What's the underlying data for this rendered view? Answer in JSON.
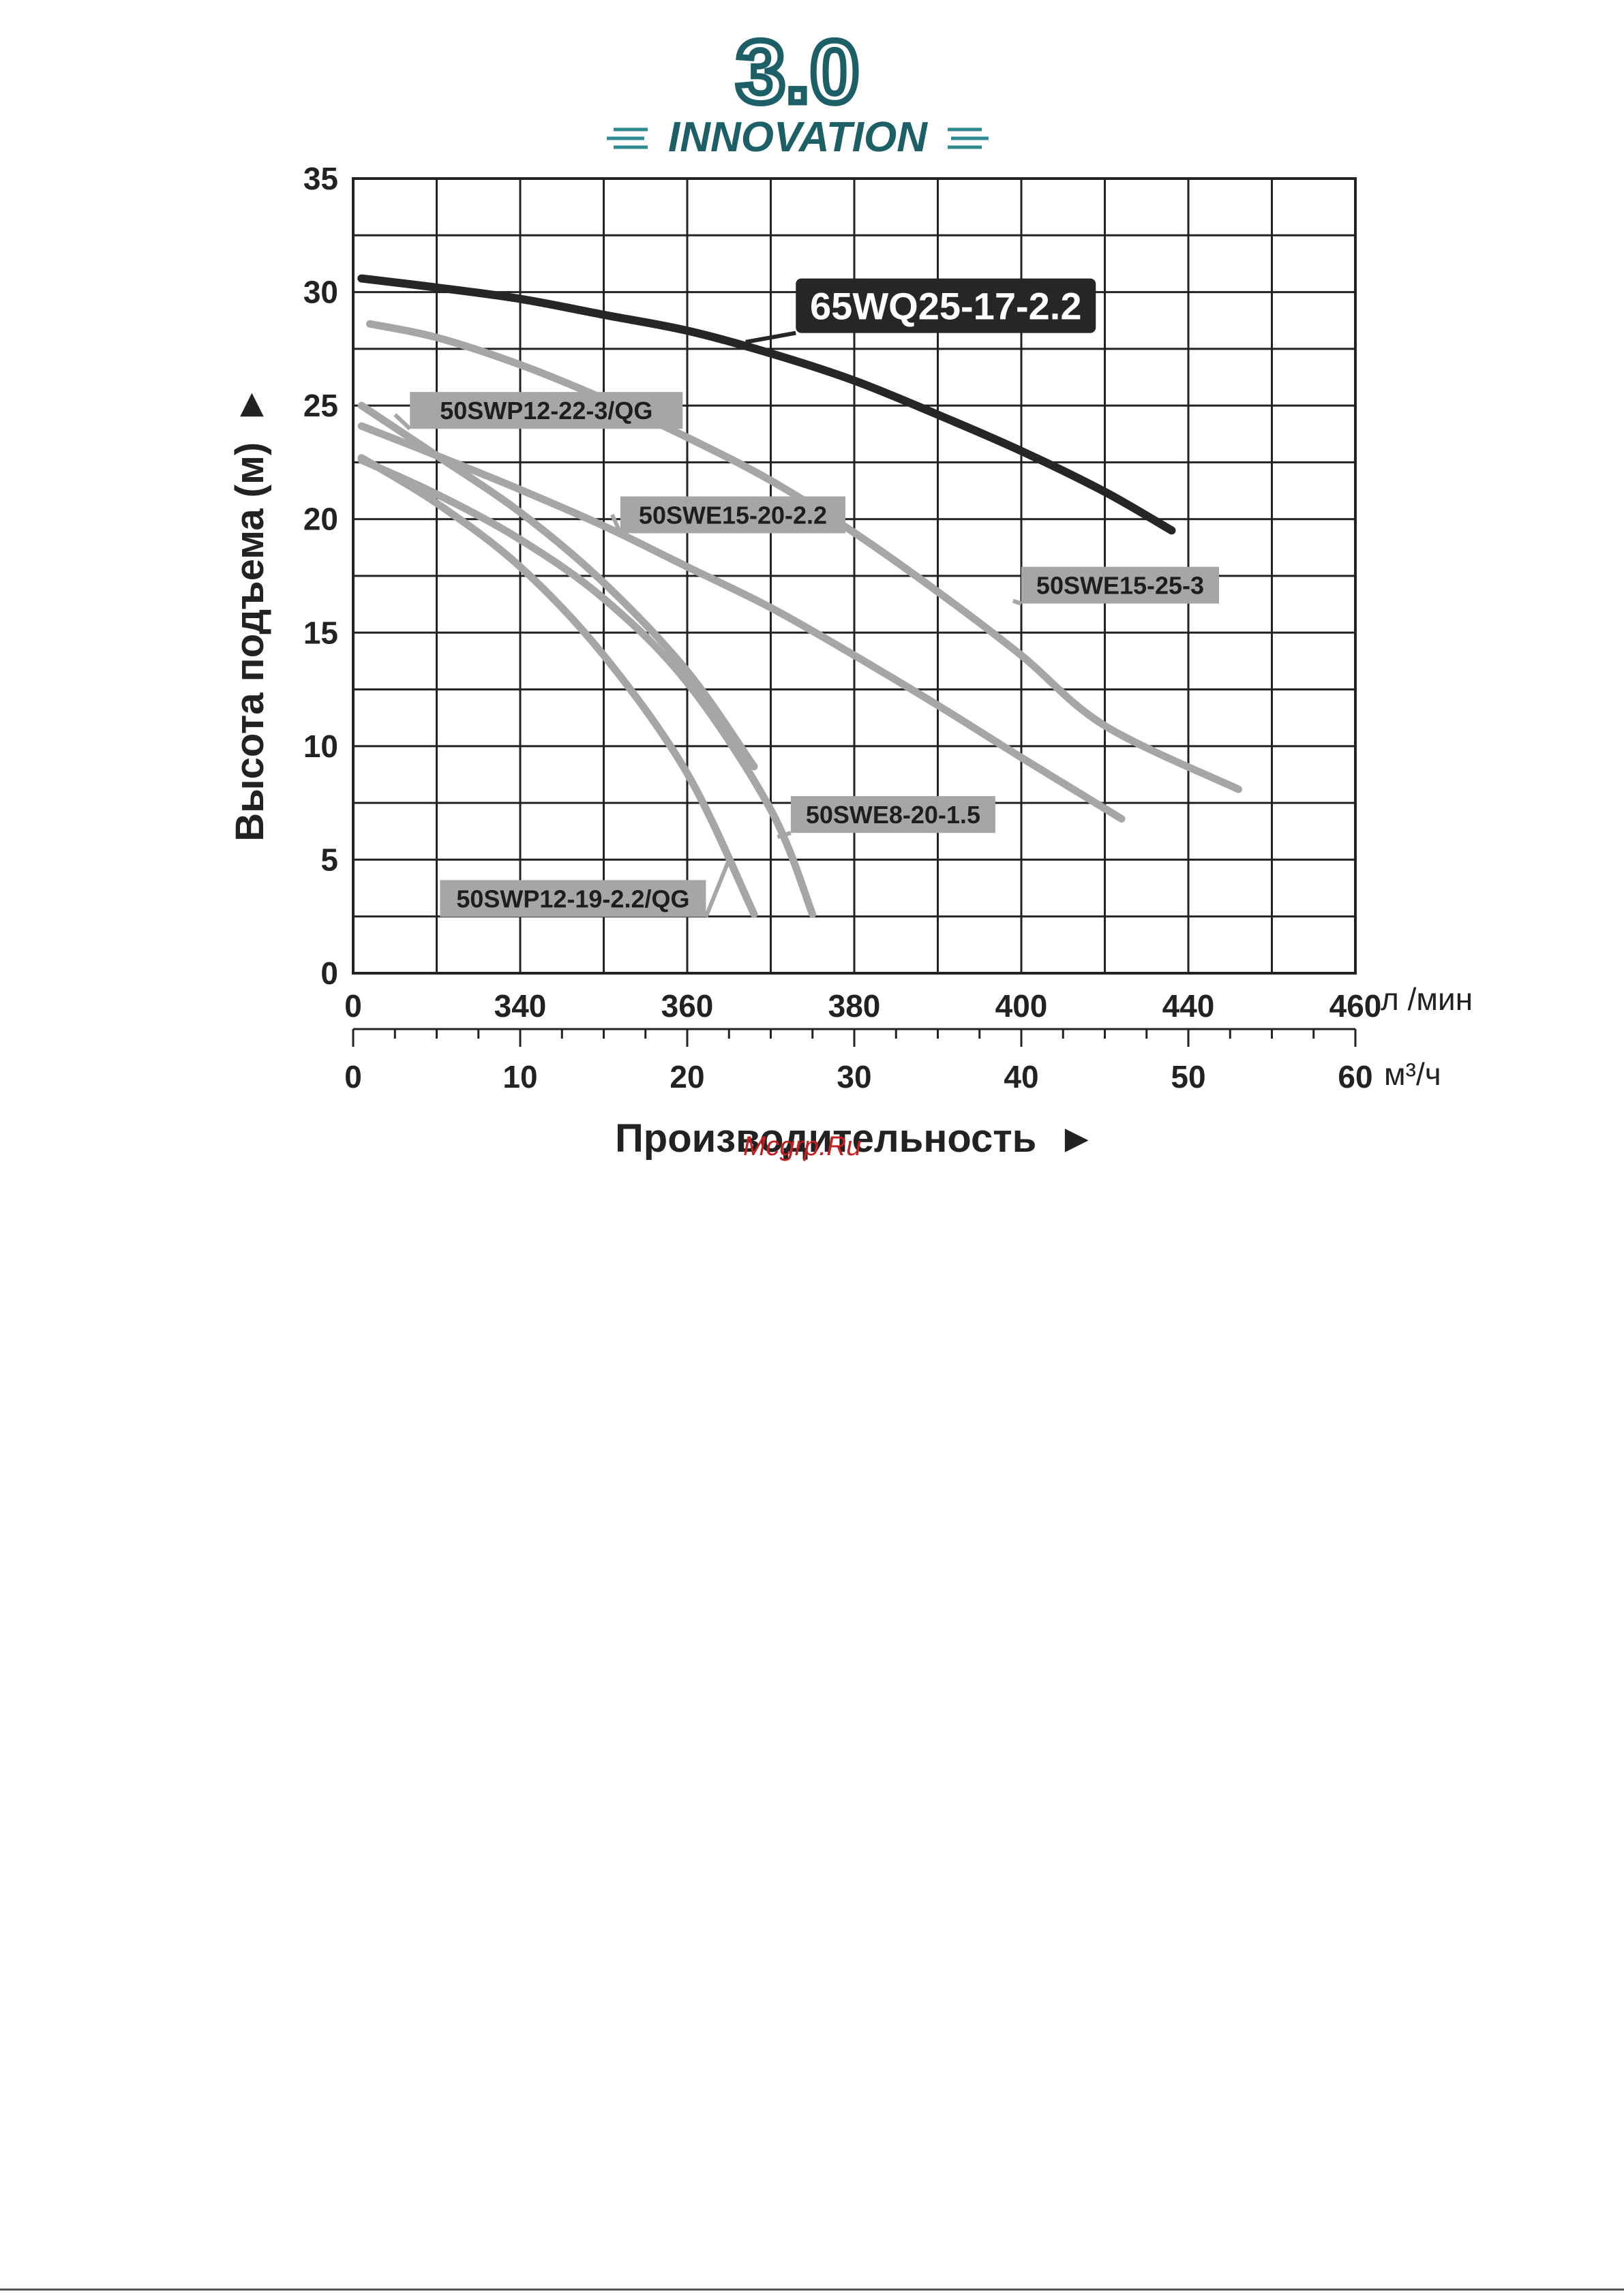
{
  "logo": {
    "top_text": "3.0",
    "bottom_text": "INNOVATION",
    "color_dark": "#1d5f66",
    "color_teal": "#2e8a90"
  },
  "watermark": "Mcgrp.Ru",
  "colors": {
    "grid": "#222222",
    "main_curve": "#262626",
    "other_curves": "#a6a6a6",
    "label_bg": "#a6a6a6",
    "dark_label_bg": "#262626"
  },
  "chart_data": {
    "type": "line",
    "ylabel": "Высота подъема (м)",
    "ylabel_arrow": "►",
    "xlabel": "Производительность",
    "xlabel_arrow": "►",
    "ylim": [
      0,
      35
    ],
    "yticks": [
      "0",
      "5",
      "10",
      "15",
      "20",
      "25",
      "30",
      "35"
    ],
    "xlim": [
      0,
      60
    ],
    "x_unit_primary": "м³/ч",
    "x_unit_secondary": "л /мин",
    "xticks_m3h": [
      "0",
      "10",
      "20",
      "30",
      "40",
      "50",
      "60"
    ],
    "xticks_lmin": [
      "0",
      "340",
      "360",
      "380",
      "400",
      "440",
      "460"
    ],
    "grid": true,
    "series": [
      {
        "name": "65WQ25-17-2.2",
        "highlight": true,
        "x": [
          0.5,
          5,
          10,
          15,
          20,
          25,
          30,
          35,
          40,
          45,
          49
        ],
        "y": [
          30.6,
          30.2,
          29.7,
          29.0,
          28.3,
          27.3,
          26.1,
          24.6,
          23.0,
          21.2,
          19.5
        ]
      },
      {
        "name": "50SWE15-25-3",
        "x": [
          1,
          5,
          10,
          15,
          20,
          25,
          30,
          35,
          40,
          45,
          53
        ],
        "y": [
          28.6,
          28.0,
          26.8,
          25.3,
          23.6,
          21.7,
          19.4,
          16.8,
          14.0,
          10.9,
          8.1
        ]
      },
      {
        "name": "50SWE15-20-2.2",
        "x": [
          0.5,
          5,
          10,
          15,
          20,
          25,
          30,
          35,
          40,
          46
        ],
        "y": [
          24.1,
          22.8,
          21.3,
          19.7,
          17.9,
          16.1,
          14.0,
          11.8,
          9.5,
          6.8
        ]
      },
      {
        "name": "50SWP12-22-3/QG",
        "x": [
          0.5,
          5,
          10,
          15,
          20,
          24
        ],
        "y": [
          25.0,
          22.8,
          20.3,
          17.2,
          13.3,
          9.1
        ]
      },
      {
        "name": "50SWE8-20-1.5",
        "x": [
          0.5,
          5,
          10,
          15,
          20,
          25,
          27.5
        ],
        "y": [
          22.6,
          21.1,
          19.1,
          16.5,
          12.8,
          7.2,
          2.6
        ]
      },
      {
        "name": "50SWP12-19-2.2/QG",
        "x": [
          0.5,
          5,
          10,
          15,
          20,
          24
        ],
        "y": [
          22.7,
          20.7,
          17.9,
          14.0,
          8.8,
          2.6
        ]
      }
    ]
  }
}
